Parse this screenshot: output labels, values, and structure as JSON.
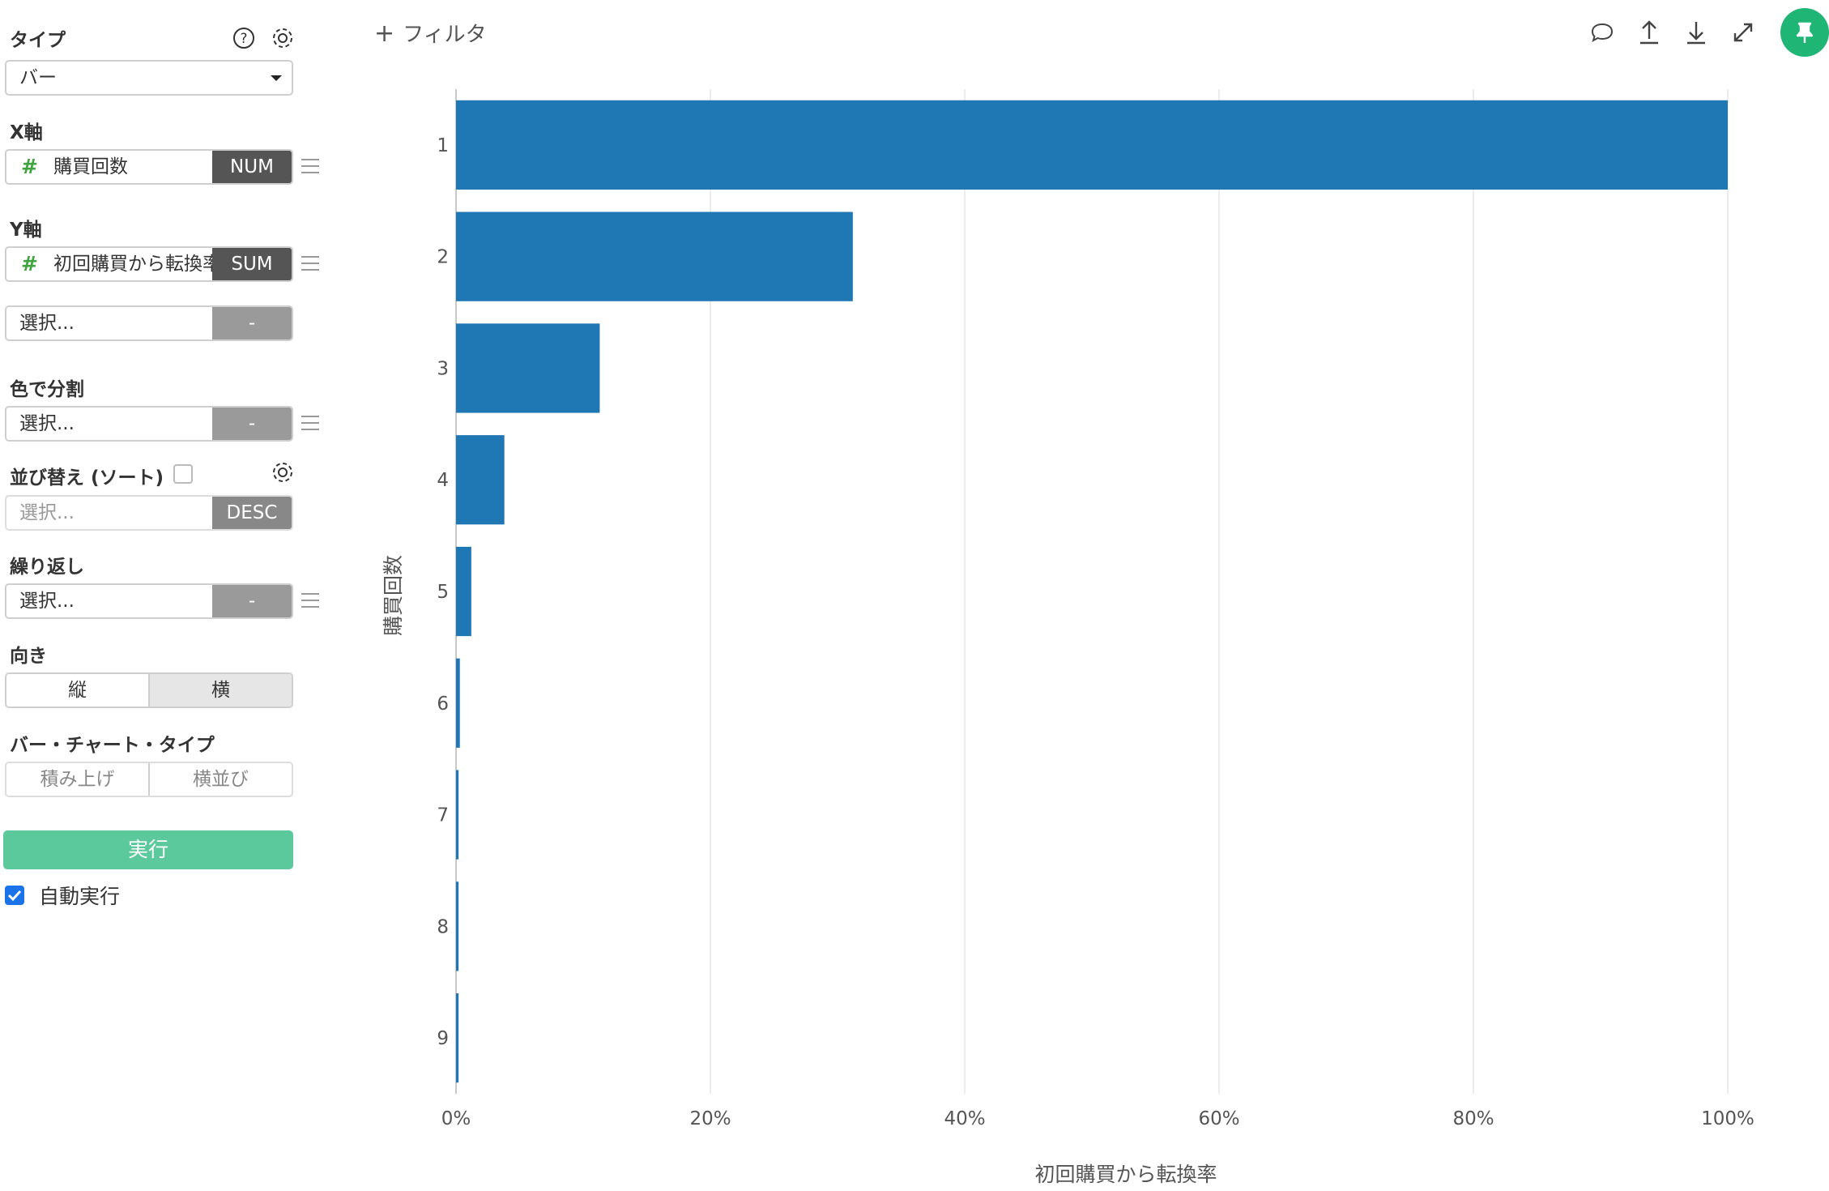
{
  "sidebar": {
    "type_label": "タイプ",
    "type_value": "バー",
    "x_axis_label": "X軸",
    "x_axis_field": "購買回数",
    "x_axis_tag": "NUM",
    "y_axis_label": "Y軸",
    "y_axis_field": "初回購買から転換率",
    "y_axis_tag": "SUM",
    "y_axis2_placeholder": "選択...",
    "y_axis2_tag": "-",
    "color_split_label": "色で分割",
    "color_split_placeholder": "選択...",
    "color_split_tag": "-",
    "sort_label": "並び替え (ソート)",
    "sort_placeholder": "選択...",
    "sort_tag": "DESC",
    "repeat_label": "繰り返し",
    "repeat_placeholder": "選択...",
    "repeat_tag": "-",
    "orientation_label": "向き",
    "orientation_options": [
      "縦",
      "横"
    ],
    "orientation_selected": "横",
    "bar_type_label": "バー・チャート・タイプ",
    "bar_type_options": [
      "積み上げ",
      "横並び"
    ],
    "run_button": "実行",
    "auto_run_label": "自動実行",
    "auto_run_checked": true
  },
  "topbar": {
    "filter_label": "フィルタ",
    "icons": [
      "comment-icon",
      "upload-icon",
      "download-icon",
      "expand-icon",
      "pin-icon"
    ],
    "pin_color": "#1fb574"
  },
  "chart_data": {
    "type": "bar",
    "orientation": "horizontal",
    "categories": [
      "1",
      "2",
      "3",
      "4",
      "5",
      "6",
      "7",
      "8",
      "9"
    ],
    "values": [
      1.0,
      0.312,
      0.113,
      0.038,
      0.012,
      0.003,
      0.002,
      0.002,
      0.002
    ],
    "xlabel": "初回購買から転換率",
    "ylabel": "購買回数",
    "xlim": [
      0,
      1
    ],
    "xticks": [
      "0%",
      "20%",
      "40%",
      "60%",
      "80%",
      "100%"
    ],
    "grid": true,
    "bar_color": "#1f77b4"
  }
}
